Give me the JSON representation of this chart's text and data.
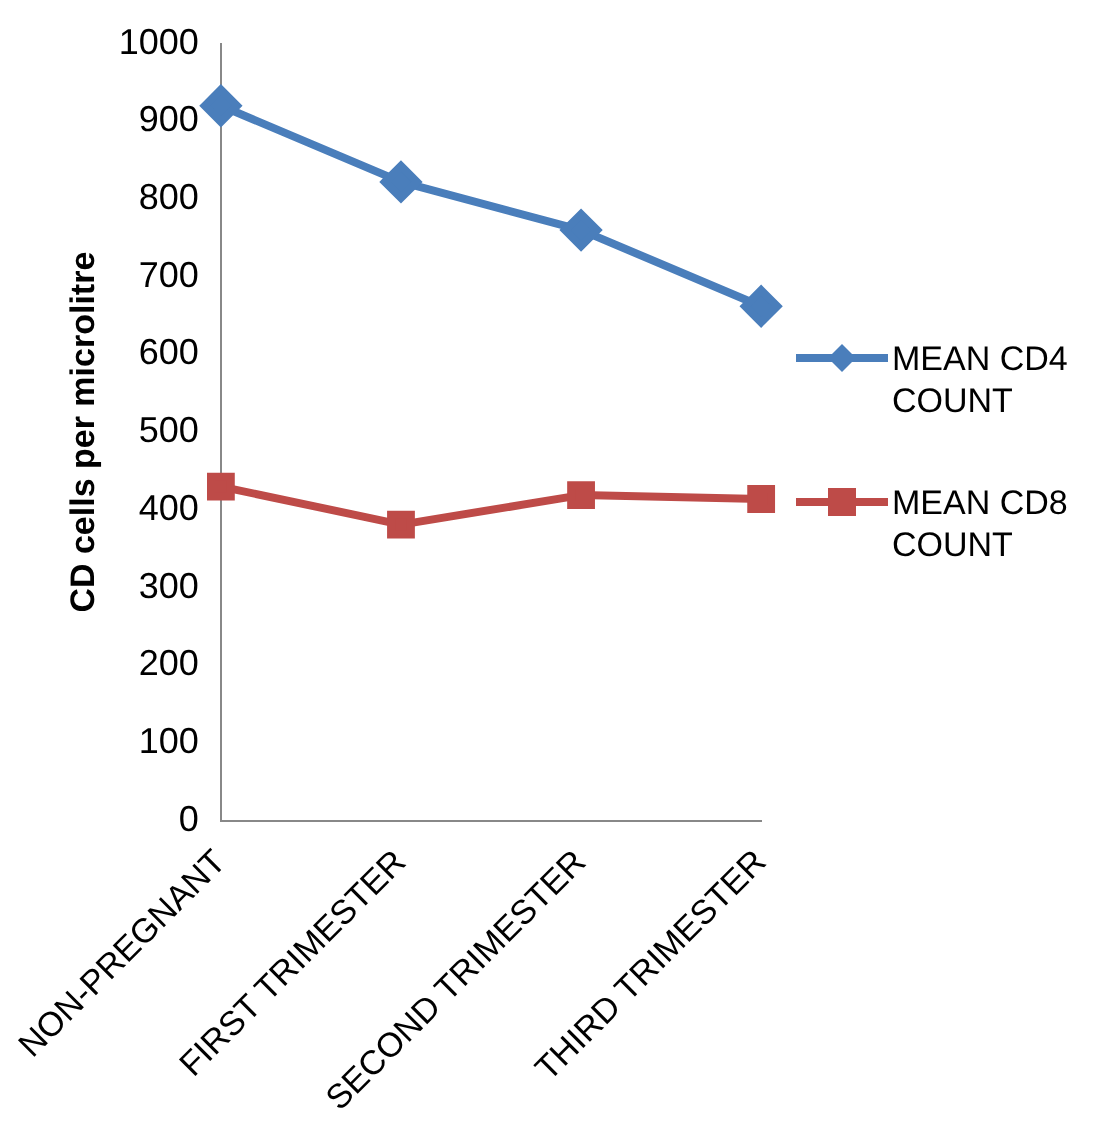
{
  "chart_data": {
    "type": "line",
    "ylabel": "CD cells per microlitre",
    "categories": [
      "NON-PREGNANT",
      "FIRST TRIMESTER",
      "SECOND TRIMESTER",
      "THIRD TRIMESTER"
    ],
    "series": [
      {
        "name": "MEAN CD4 COUNT",
        "color": "#4a7ebb",
        "marker": "diamond",
        "values": [
          920,
          822,
          760,
          662
        ]
      },
      {
        "name": "MEAN CD8 COUNT",
        "color": "#be4b48",
        "marker": "square",
        "values": [
          430,
          381,
          419,
          414
        ]
      }
    ],
    "ylim": [
      0,
      1000
    ],
    "yticks": [
      0,
      100,
      200,
      300,
      400,
      500,
      600,
      700,
      800,
      900,
      1000
    ],
    "grid": false,
    "legend": "right",
    "line_style": "solid"
  }
}
